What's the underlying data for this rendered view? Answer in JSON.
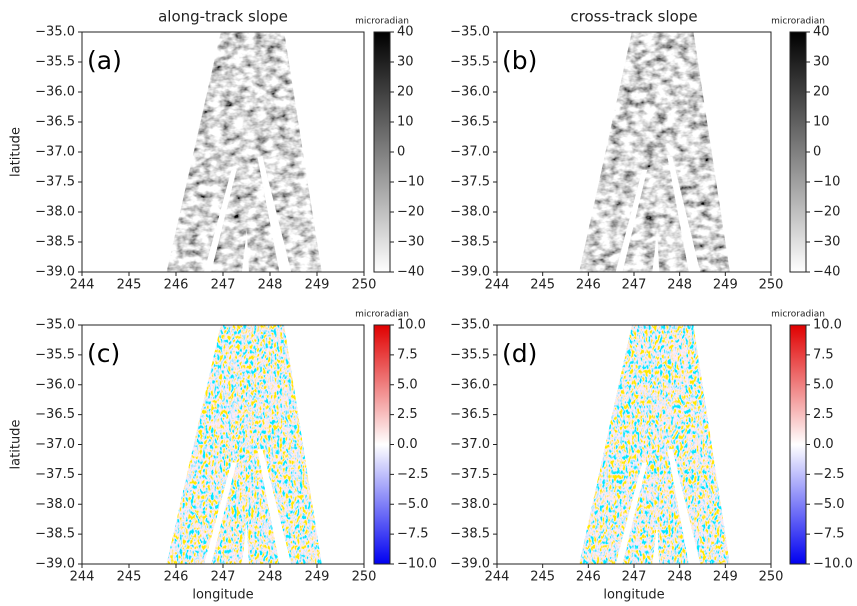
{
  "chart_data": [
    {
      "type": "heatmap",
      "title": "along-track slope",
      "panel_label": "(a)",
      "ylabel": "latitude",
      "xlim": [
        244,
        250
      ],
      "ylim": [
        -39,
        -35
      ],
      "xticks": [
        244,
        245,
        246,
        247,
        248,
        249,
        250
      ],
      "yticks": [
        {
          "value": -35,
          "label": "−35.0"
        },
        {
          "value": -35.5,
          "label": "−35.5"
        },
        {
          "value": -36,
          "label": "−36.0"
        },
        {
          "value": -36.5,
          "label": "−36.5"
        },
        {
          "value": -37,
          "label": "−37.0"
        },
        {
          "value": -37.5,
          "label": "−37.5"
        },
        {
          "value": -38,
          "label": "−38.0"
        },
        {
          "value": -38.5,
          "label": "−38.5"
        },
        {
          "value": -39,
          "label": "−39.0"
        }
      ],
      "colorbar": {
        "label": "microradian",
        "colormap": "gray_r",
        "lim": [
          -40,
          40
        ],
        "ticks": [
          40,
          30,
          20,
          10,
          0,
          {
            "value": -10,
            "label": "−10"
          },
          {
            "value": -20,
            "label": "−20"
          },
          {
            "value": -30,
            "label": "−30"
          },
          {
            "value": -40,
            "label": "−40"
          }
        ]
      }
    },
    {
      "type": "heatmap",
      "title": "cross-track slope",
      "panel_label": "(b)",
      "xlim": [
        244,
        250
      ],
      "ylim": [
        -39,
        -35
      ],
      "xticks": [
        244,
        245,
        246,
        247,
        248,
        249,
        250
      ],
      "yticks": [
        {
          "value": -35,
          "label": "−35.0"
        },
        {
          "value": -35.5,
          "label": "−35.5"
        },
        {
          "value": -36,
          "label": "−36.0"
        },
        {
          "value": -36.5,
          "label": "−36.5"
        },
        {
          "value": -37,
          "label": "−37.0"
        },
        {
          "value": -37.5,
          "label": "−37.5"
        },
        {
          "value": -38,
          "label": "−38.0"
        },
        {
          "value": -38.5,
          "label": "−38.5"
        },
        {
          "value": -39,
          "label": "−39.0"
        }
      ],
      "colorbar": {
        "label": "microradian",
        "colormap": "gray_r",
        "lim": [
          -40,
          40
        ],
        "ticks": [
          40,
          30,
          20,
          10,
          0,
          {
            "value": -10,
            "label": "−10"
          },
          {
            "value": -20,
            "label": "−20"
          },
          {
            "value": -30,
            "label": "−30"
          },
          {
            "value": -40,
            "label": "−40"
          }
        ]
      }
    },
    {
      "type": "heatmap",
      "panel_label": "(c)",
      "ylabel": "latitude",
      "xlabel": "longitude",
      "xlim": [
        244,
        250
      ],
      "ylim": [
        -39,
        -35
      ],
      "xticks": [
        244,
        245,
        246,
        247,
        248,
        249,
        250
      ],
      "yticks": [
        {
          "value": -35,
          "label": "−35.0"
        },
        {
          "value": -35.5,
          "label": "−35.5"
        },
        {
          "value": -36,
          "label": "−36.0"
        },
        {
          "value": -36.5,
          "label": "−36.5"
        },
        {
          "value": -37,
          "label": "−37.0"
        },
        {
          "value": -37.5,
          "label": "−37.5"
        },
        {
          "value": -38,
          "label": "−38.0"
        },
        {
          "value": -38.5,
          "label": "−38.5"
        },
        {
          "value": -39,
          "label": "−39.0"
        }
      ],
      "colorbar": {
        "label": "microradian",
        "colormap": "bwr",
        "lim": [
          -10,
          10
        ],
        "ticks": [
          {
            "value": 10,
            "label": "10.0"
          },
          7.5,
          {
            "value": 5,
            "label": "5.0"
          },
          2.5,
          {
            "value": 0,
            "label": "0.0"
          },
          {
            "value": -2.5,
            "label": "−2.5"
          },
          {
            "value": -5,
            "label": "−5.0"
          },
          {
            "value": -7.5,
            "label": "−7.5"
          },
          {
            "value": -10,
            "label": "−10.0"
          }
        ]
      }
    },
    {
      "type": "heatmap",
      "panel_label": "(d)",
      "xlabel": "longitude",
      "xlim": [
        244,
        250
      ],
      "ylim": [
        -39,
        -35
      ],
      "xticks": [
        244,
        245,
        246,
        247,
        248,
        249,
        250
      ],
      "yticks": [
        {
          "value": -35,
          "label": "−35.0"
        },
        {
          "value": -35.5,
          "label": "−35.5"
        },
        {
          "value": -36,
          "label": "−36.0"
        },
        {
          "value": -36.5,
          "label": "−36.5"
        },
        {
          "value": -37,
          "label": "−37.0"
        },
        {
          "value": -37.5,
          "label": "−37.5"
        },
        {
          "value": -38,
          "label": "−38.0"
        },
        {
          "value": -38.5,
          "label": "−38.5"
        },
        {
          "value": -39,
          "label": "−39.0"
        }
      ],
      "colorbar": {
        "label": "microradian",
        "colormap": "bwr",
        "lim": [
          -10,
          10
        ],
        "ticks": [
          {
            "value": 10,
            "label": "10.0"
          },
          7.5,
          {
            "value": 5,
            "label": "5.0"
          },
          2.5,
          {
            "value": 0,
            "label": "0.0"
          },
          {
            "value": -2.5,
            "label": "−2.5"
          },
          {
            "value": -5,
            "label": "−5.0"
          },
          {
            "value": -7.5,
            "label": "−7.5"
          },
          {
            "value": -10,
            "label": "−10.0"
          }
        ]
      }
    }
  ]
}
